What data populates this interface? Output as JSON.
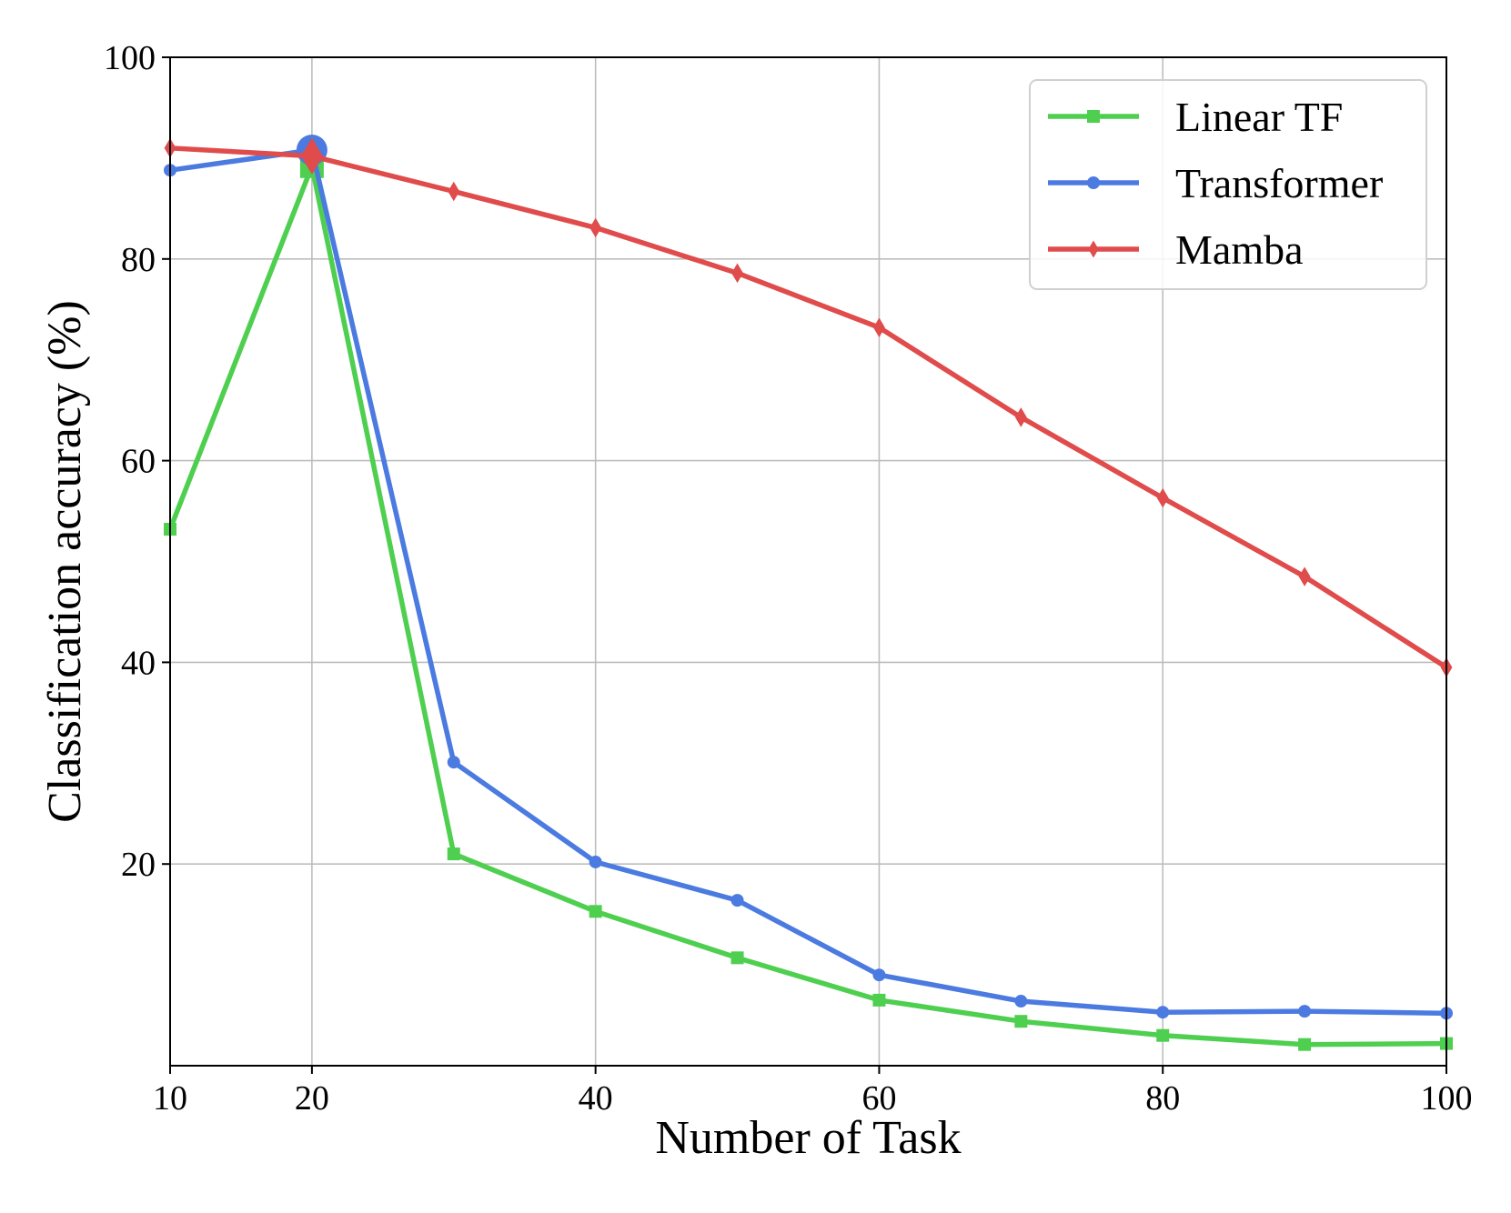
{
  "chart_data": {
    "type": "line",
    "xlabel": "Number of Task",
    "ylabel": "Classification accuracy (%)",
    "xlim": [
      10,
      100
    ],
    "ylim": [
      0,
      100
    ],
    "xticks": [
      10,
      20,
      40,
      60,
      80,
      100
    ],
    "yticks": [
      20,
      40,
      60,
      80,
      100
    ],
    "grid": true,
    "legend_position": "top-right",
    "x": [
      10,
      20,
      30,
      40,
      50,
      60,
      70,
      80,
      90,
      100
    ],
    "series": [
      {
        "name": "Linear TF",
        "color": "#4fcf4f",
        "marker": "square",
        "values": [
          53.2,
          89.2,
          21.0,
          15.3,
          10.7,
          6.5,
          4.4,
          3.0,
          2.1,
          2.2
        ],
        "highlight_index": 1
      },
      {
        "name": "Transformer",
        "color": "#4b7be0",
        "marker": "circle",
        "values": [
          88.8,
          90.8,
          30.1,
          20.2,
          16.4,
          9.0,
          6.4,
          5.3,
          5.4,
          5.2
        ],
        "highlight_index": 1
      },
      {
        "name": "Mamba",
        "color": "#e04b4b",
        "marker": "diamond",
        "values": [
          91.0,
          90.2,
          86.7,
          83.1,
          78.6,
          73.2,
          64.3,
          56.3,
          48.5,
          39.5
        ],
        "highlight_index": 1
      }
    ]
  }
}
